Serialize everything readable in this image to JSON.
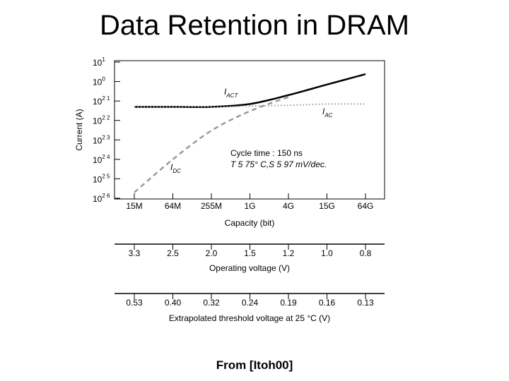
{
  "slide": {
    "title": "Data Retention in DRAM",
    "source": "From [Itoh00]"
  },
  "chart_data": {
    "type": "line",
    "xlabel": "Capacity (bit)",
    "ylabel": "Current (A)",
    "categories": [
      "15M",
      "64M",
      "255M",
      "1G",
      "4G",
      "15G",
      "64G"
    ],
    "y_scale": "log",
    "ylim": [
      1e-06,
      10
    ],
    "y_ticks": [
      {
        "base": "10",
        "exp": "1",
        "value": 10
      },
      {
        "base": "10",
        "exp": "0",
        "value": 1
      },
      {
        "base": "10",
        "exp": "2 1",
        "value": 0.1
      },
      {
        "base": "10",
        "exp": "2 2",
        "value": 0.01
      },
      {
        "base": "10",
        "exp": "2 3",
        "value": 0.001
      },
      {
        "base": "10",
        "exp": "2 4",
        "value": 0.0001
      },
      {
        "base": "10",
        "exp": "2 5",
        "value": 1e-05
      },
      {
        "base": "10",
        "exp": "2 6",
        "value": 1e-06
      }
    ],
    "series": [
      {
        "label_main": "I",
        "label_sub": "ACT",
        "style": "solid",
        "color": "#000000",
        "points": [
          [
            "15M",
            0.05
          ],
          [
            "64M",
            0.05
          ],
          [
            "255M",
            0.05
          ],
          [
            "1G",
            0.07
          ],
          [
            "4G",
            0.2
          ],
          [
            "15G",
            0.7
          ],
          [
            "64G",
            2.4
          ]
        ]
      },
      {
        "label_main": "I",
        "label_sub": "AC",
        "style": "dotted",
        "color": "#9a9a9a",
        "points": [
          [
            "15M",
            0.05
          ],
          [
            "64M",
            0.05
          ],
          [
            "255M",
            0.05
          ],
          [
            "1G",
            0.055
          ],
          [
            "4G",
            0.06
          ],
          [
            "15G",
            0.07
          ],
          [
            "64G",
            0.07
          ]
        ]
      },
      {
        "label_main": "I",
        "label_sub": "DC",
        "style": "dashed",
        "color": "#9a9a9a",
        "points": [
          [
            "15M",
            2e-06
          ],
          [
            "64M",
            0.0001
          ],
          [
            "255M",
            0.003
          ],
          [
            "1G",
            0.03
          ],
          [
            "4G",
            0.16
          ]
        ]
      }
    ],
    "annotations": [
      "Cycle time : 150 ns",
      "T 5  75° C,S 5  97 mV/dec."
    ],
    "secondary_axes": [
      {
        "label": "Operating voltage (V)",
        "ticks": [
          "3.3",
          "2.5",
          "2.0",
          "1.5",
          "1.2",
          "1.0",
          "0.8"
        ]
      },
      {
        "label": "Extrapolated threshold voltage at 25 °C (V)",
        "ticks": [
          "0.53",
          "0.40",
          "0.32",
          "0.24",
          "0.19",
          "0.16",
          "0.13"
        ]
      }
    ]
  }
}
